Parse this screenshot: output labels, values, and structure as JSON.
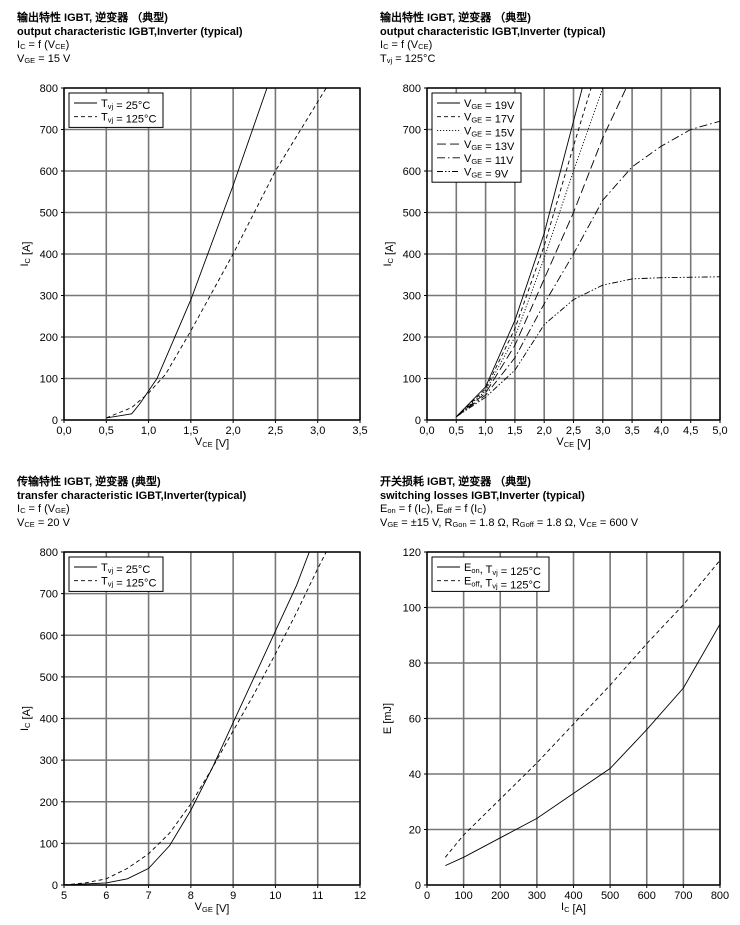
{
  "headers": [
    {
      "title_cn": "输出特性 IGBT, 逆变器 （典型)",
      "title_en": "output characteristic IGBT,Inverter (typical)",
      "lines": [
        "I_{C} = f (V_{CE})",
        "V_{GE} = 15 V"
      ]
    },
    {
      "title_cn": "输出特性 IGBT, 逆变器 （典型)",
      "title_en": "output characteristic IGBT,Inverter (typical)",
      "lines": [
        "I_{C} = f (V_{CE})",
        "T_{vj} = 125°C"
      ]
    },
    {
      "title_cn": "传输特性 IGBT, 逆变器 (典型)",
      "title_en": "transfer characteristic  IGBT,Inverter(typical)",
      "lines": [
        "I_{C} = f (V_{GE})",
        "V_{CE} = 20 V"
      ]
    },
    {
      "title_cn": "开关损耗 IGBT, 逆变器 （典型)",
      "title_en": "switching losses  IGBT,Inverter (typical)",
      "lines": [
        "E_{on} = f (I_{C}), E_{off} = f (I_{C})",
        "V_{GE} = ±15 V, R_{Gon} = 1.8 Ω, R_{Goff} = 1.8 Ω, V_{CE} = 600 V"
      ]
    }
  ],
  "chart_data": [
    {
      "type": "line",
      "title": "output characteristic IGBT,Inverter (typical)",
      "xlabel": "V_{CE} [V]",
      "ylabel": "I_{C} [A]",
      "xlim": [
        0,
        3.5
      ],
      "ylim": [
        0,
        800
      ],
      "grid": true,
      "legend": "top-left",
      "xticks": [
        0,
        0.5,
        1,
        1.5,
        2,
        2.5,
        3,
        3.5
      ],
      "xtick_labels": [
        "0,0",
        "0,5",
        "1,0",
        "1,5",
        "2,0",
        "2,5",
        "3,0",
        "3,5"
      ],
      "yticks": [
        0,
        100,
        200,
        300,
        400,
        500,
        600,
        700,
        800
      ],
      "ytick_labels": [
        "0",
        "100",
        "200",
        "300",
        "400",
        "500",
        "600",
        "700",
        "800"
      ],
      "series": [
        {
          "name": "T_{vj} = 25°C",
          "style": "solid",
          "x": [
            0.5,
            0.8,
            0.9,
            1.1,
            1.5,
            2.0,
            2.4
          ],
          "y": [
            5,
            15,
            40,
            100,
            290,
            565,
            800
          ]
        },
        {
          "name": "T_{vj} = 125°C",
          "style": "dashed",
          "x": [
            0.5,
            0.8,
            1.0,
            1.2,
            1.5,
            2.0,
            2.5,
            3.1
          ],
          "y": [
            5,
            30,
            65,
            110,
            215,
            400,
            600,
            800
          ]
        }
      ]
    },
    {
      "type": "line",
      "title": "output characteristic IGBT,Inverter (typical)",
      "xlabel": "V_{CE} [V]",
      "ylabel": "I_{C} [A]",
      "xlim": [
        0,
        5
      ],
      "ylim": [
        0,
        800
      ],
      "grid": true,
      "legend": "top-left",
      "xticks": [
        0,
        0.5,
        1,
        1.5,
        2,
        2.5,
        3,
        3.5,
        4,
        4.5,
        5
      ],
      "xtick_labels": [
        "0,0",
        "0,5",
        "1,0",
        "1,5",
        "2,0",
        "2,5",
        "3,0",
        "3,5",
        "4,0",
        "4,5",
        "5,0"
      ],
      "yticks": [
        0,
        100,
        200,
        300,
        400,
        500,
        600,
        700,
        800
      ],
      "ytick_labels": [
        "0",
        "100",
        "200",
        "300",
        "400",
        "500",
        "600",
        "700",
        "800"
      ],
      "series": [
        {
          "name": "V_{GE} = 19V",
          "style": "solid",
          "x": [
            0.5,
            1,
            1.5,
            2,
            2.5,
            2.65
          ],
          "y": [
            8,
            80,
            240,
            450,
            720,
            800
          ]
        },
        {
          "name": "V_{GE} = 17V",
          "style": "dashed",
          "x": [
            0.5,
            1,
            1.5,
            2,
            2.5,
            2.8
          ],
          "y": [
            8,
            75,
            220,
            420,
            660,
            800
          ]
        },
        {
          "name": "V_{GE} = 15V",
          "style": "dotted",
          "x": [
            0.5,
            1,
            1.5,
            2,
            2.5,
            3.0
          ],
          "y": [
            8,
            70,
            200,
            390,
            600,
            800
          ]
        },
        {
          "name": "V_{GE} = 13V",
          "style": "longdash",
          "x": [
            0.5,
            1,
            1.5,
            2,
            2.5,
            3,
            3.4
          ],
          "y": [
            8,
            65,
            180,
            340,
            500,
            680,
            800
          ]
        },
        {
          "name": "V_{GE} = 11V",
          "style": "dashdot",
          "x": [
            0.5,
            1,
            1.5,
            2,
            2.5,
            3,
            3.5,
            4,
            4.5,
            5
          ],
          "y": [
            8,
            60,
            150,
            280,
            400,
            530,
            610,
            660,
            700,
            720
          ]
        },
        {
          "name": "V_{GE} = 9V",
          "style": "dashdotdot",
          "x": [
            0.5,
            1,
            1.5,
            2,
            2.5,
            3,
            3.5,
            4,
            5
          ],
          "y": [
            8,
            55,
            120,
            230,
            290,
            325,
            340,
            343,
            345
          ]
        }
      ]
    },
    {
      "type": "line",
      "title": "transfer characteristic IGBT,Inverter(typical)",
      "xlabel": "V_{GE} [V]",
      "ylabel": "I_{C} [A]",
      "xlim": [
        5,
        12
      ],
      "ylim": [
        0,
        800
      ],
      "grid": true,
      "legend": "top-left",
      "xticks": [
        5,
        6,
        7,
        8,
        9,
        10,
        11,
        12
      ],
      "xtick_labels": [
        "5",
        "6",
        "7",
        "8",
        "9",
        "10",
        "11",
        "12"
      ],
      "yticks": [
        0,
        100,
        200,
        300,
        400,
        500,
        600,
        700,
        800
      ],
      "ytick_labels": [
        "0",
        "100",
        "200",
        "300",
        "400",
        "500",
        "600",
        "700",
        "800"
      ],
      "series": [
        {
          "name": "T_{vj} = 25°C",
          "style": "solid",
          "x": [
            5,
            6,
            6.5,
            7,
            7.5,
            8,
            8.5,
            9,
            9.5,
            10,
            10.5,
            10.8
          ],
          "y": [
            0,
            5,
            15,
            40,
            95,
            180,
            280,
            390,
            500,
            610,
            720,
            800
          ]
        },
        {
          "name": "T_{vj} = 125°C",
          "style": "dashed",
          "x": [
            5,
            5.5,
            6,
            6.5,
            7,
            7.5,
            8,
            8.5,
            9,
            9.5,
            10,
            10.5,
            11,
            11.2
          ],
          "y": [
            0,
            5,
            15,
            40,
            75,
            125,
            195,
            280,
            370,
            460,
            555,
            655,
            760,
            800
          ]
        }
      ]
    },
    {
      "type": "line",
      "title": "switching losses IGBT,Inverter (typical)",
      "xlabel": "I_{C} [A]",
      "ylabel": "E [mJ]",
      "xlim": [
        0,
        800
      ],
      "ylim": [
        0,
        120
      ],
      "grid": true,
      "legend": "top-left",
      "xticks": [
        0,
        100,
        200,
        300,
        400,
        500,
        600,
        700,
        800
      ],
      "xtick_labels": [
        "0",
        "100",
        "200",
        "300",
        "400",
        "500",
        "600",
        "700",
        "800"
      ],
      "yticks": [
        0,
        20,
        40,
        60,
        80,
        100,
        120
      ],
      "ytick_labels": [
        "0",
        "20",
        "40",
        "60",
        "80",
        "100",
        "120"
      ],
      "series": [
        {
          "name": "E_{on}, T_{vj} = 125°C",
          "style": "solid",
          "x": [
            50,
            100,
            200,
            300,
            400,
            500,
            600,
            700,
            800
          ],
          "y": [
            7,
            10,
            17,
            24,
            33,
            42,
            56,
            71,
            94
          ]
        },
        {
          "name": "E_{off}, T_{vj} = 125°C",
          "style": "dashed",
          "x": [
            50,
            100,
            200,
            300,
            400,
            500,
            600,
            700,
            800
          ],
          "y": [
            10,
            18,
            31,
            44,
            58,
            72,
            87,
            101,
            117
          ]
        }
      ]
    }
  ]
}
